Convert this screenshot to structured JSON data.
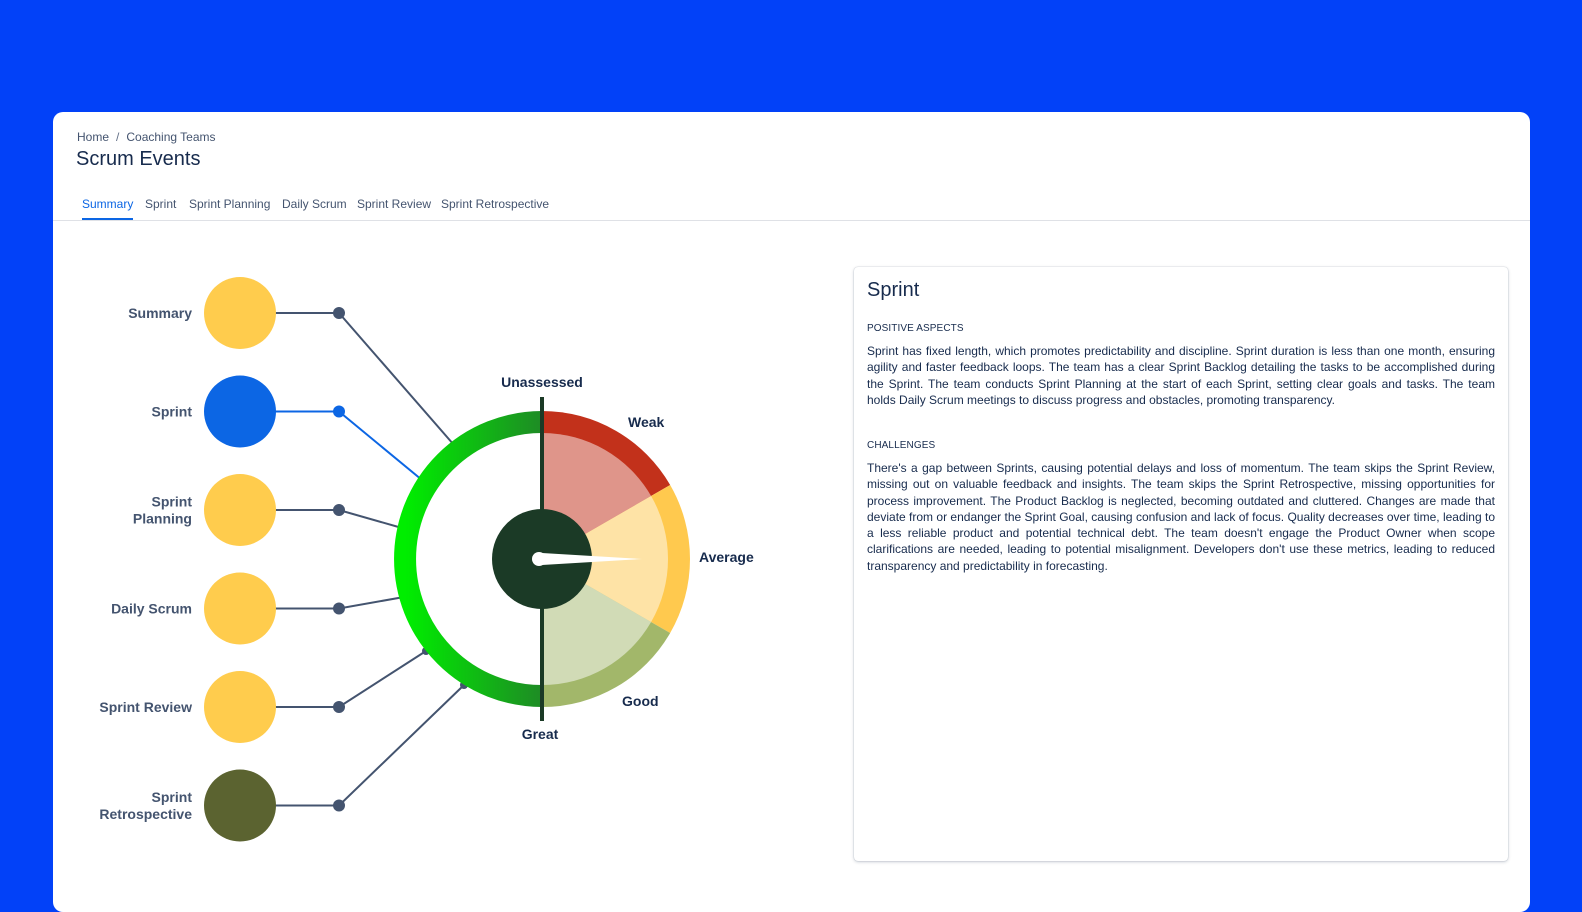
{
  "breadcrumb": {
    "home": "Home",
    "separator": "/",
    "current": "Coaching Teams"
  },
  "page": {
    "title": "Scrum Events"
  },
  "tabs": [
    {
      "label": "Summary",
      "active": true
    },
    {
      "label": "Sprint",
      "active": false
    },
    {
      "label": "Sprint Planning",
      "active": false
    },
    {
      "label": "Daily Scrum",
      "active": false
    },
    {
      "label": "Sprint Review",
      "active": false
    },
    {
      "label": "Sprint Retrospective",
      "active": false
    }
  ],
  "events": [
    {
      "label": "Summary",
      "color": "#ffcc4d",
      "selected": false
    },
    {
      "label": "Sprint",
      "color": "#0c66e4",
      "selected": true
    },
    {
      "label": "Sprint\nPlanning",
      "color": "#ffcc4d",
      "selected": false
    },
    {
      "label": "Daily Scrum",
      "color": "#ffcc4d",
      "selected": false
    },
    {
      "label": "Sprint Review",
      "color": "#ffcc4d",
      "selected": false
    },
    {
      "label": "Sprint\nRetrospective",
      "color": "#5b6330",
      "selected": false
    }
  ],
  "gauge": {
    "labels": {
      "unassessed": "Unassessed",
      "weak": "Weak",
      "average": "Average",
      "good": "Good",
      "great": "Great"
    },
    "colors": {
      "weak": "#c2311b",
      "weak_fill": "#df958a",
      "average": "#ffc94e",
      "average_fill": "#fee3a6",
      "good": "#a2b76a",
      "good_fill": "#d1dbb6",
      "great_start": "#00ee00",
      "great_end": "#1e8b25",
      "hub": "#1b3a26"
    },
    "needle_target": "average"
  },
  "panel": {
    "title": "Sprint",
    "positive_heading": "POSITIVE ASPECTS",
    "positive_text": "Sprint has fixed length, which promotes predictability and discipline. Sprint duration is less than one month, ensuring agility and faster feedback loops. The team has a clear Sprint Backlog detailing the tasks to be accomplished during the Sprint. The team conducts Sprint Planning at the start of each Sprint, setting clear goals and tasks. The team holds Daily Scrum meetings to discuss progress and obstacles, promoting transparency.",
    "challenges_heading": "CHALLENGES",
    "challenges_text": "There's a gap between Sprints, causing potential delays and loss of momentum. The team skips the Sprint Review, missing out on valuable feedback and insights. The team skips the Sprint Retrospective, missing opportunities for process improvement. The Product Backlog is neglected, becoming outdated and cluttered. Changes are made that deviate from or endanger the Sprint Goal, causing confusion and lack of focus. Quality decreases over time, leading to a less reliable product and potential technical debt. The team doesn't engage the Product Owner when scope clarifications are needed, leading to potential misalignment. Developers don't use these metrics, leading to reduced transparency and predictability in forecasting."
  }
}
